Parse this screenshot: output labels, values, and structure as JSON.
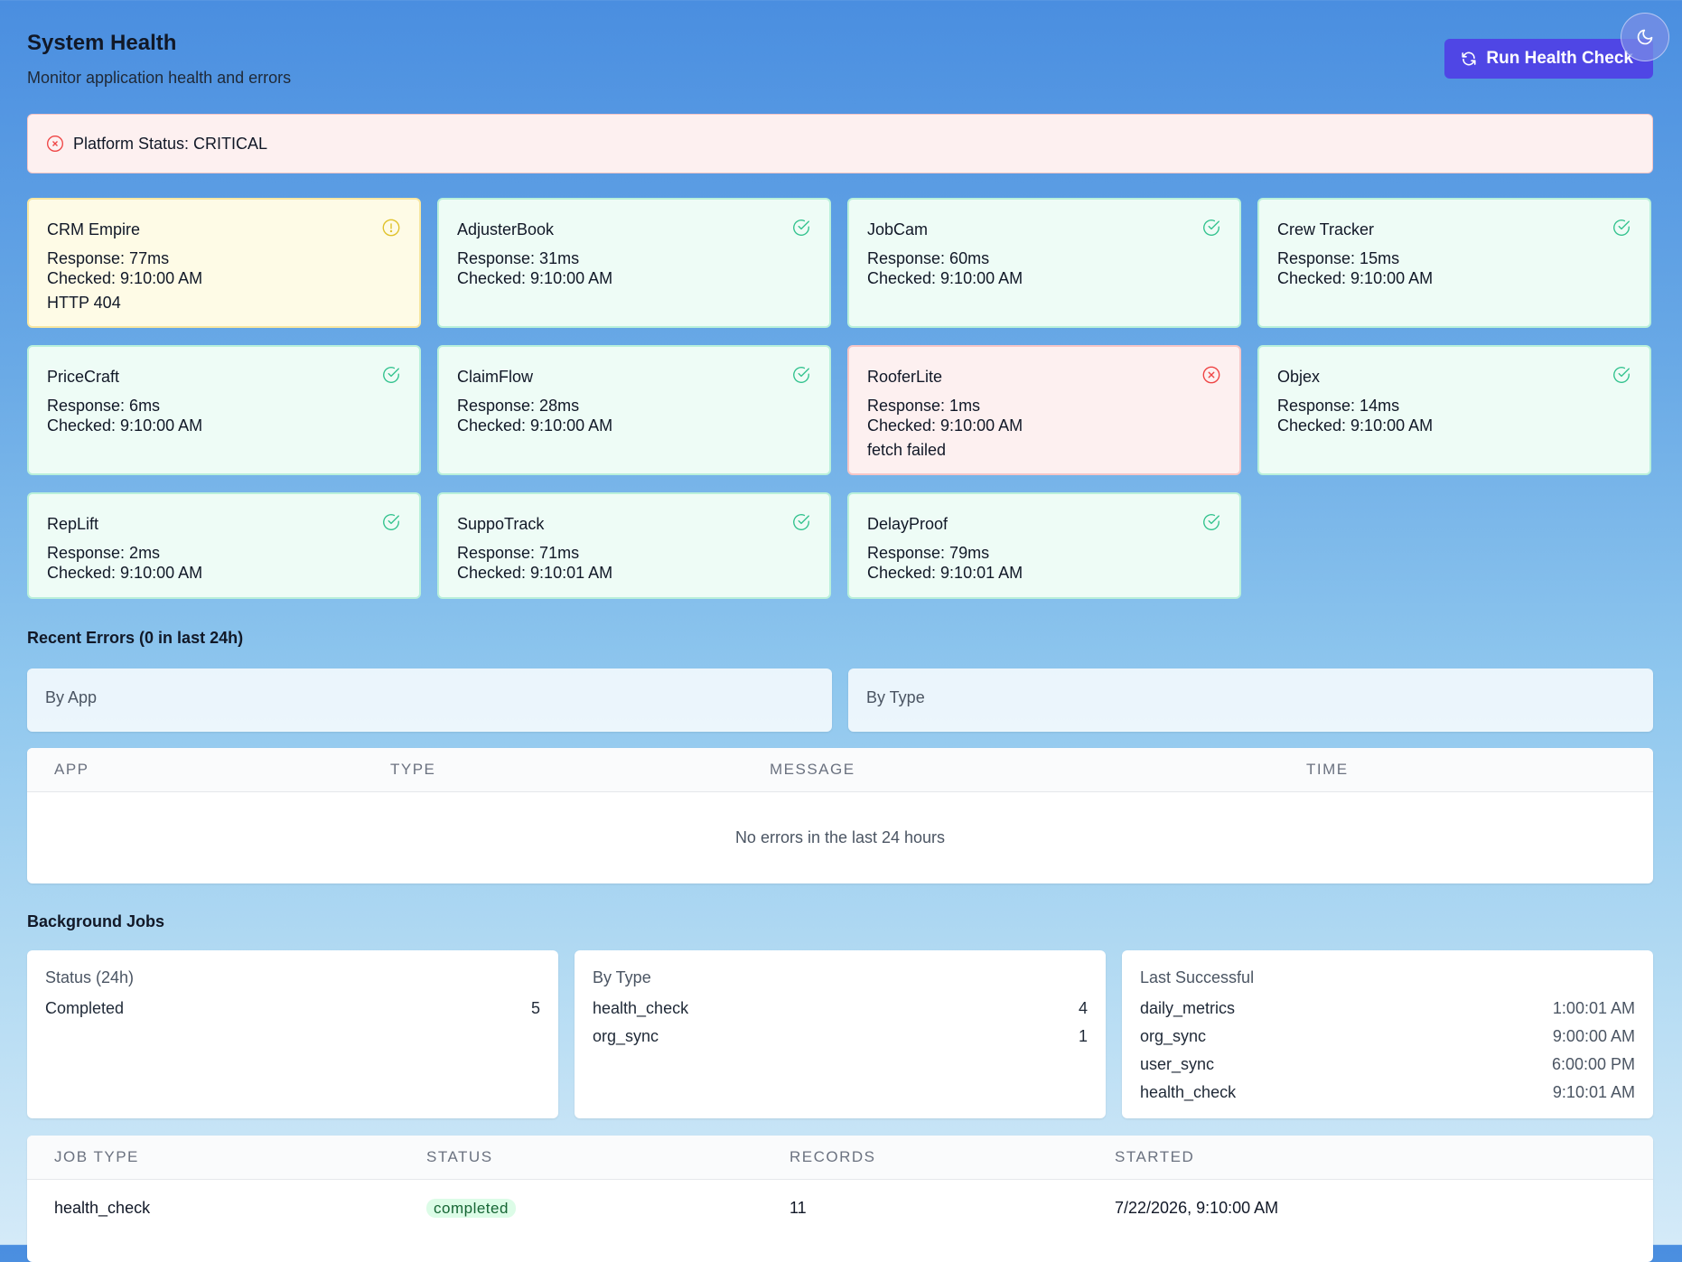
{
  "header": {
    "title": "System Health",
    "subtitle": "Monitor application health and errors",
    "run_button": "Run Health Check"
  },
  "platform": {
    "label": "Platform Status: CRITICAL"
  },
  "apps": [
    {
      "name": "CRM Empire",
      "response": "Response: 77ms",
      "checked": "Checked: 9:10:00 AM",
      "error": "HTTP 404",
      "status": "degraded"
    },
    {
      "name": "AdjusterBook",
      "response": "Response: 31ms",
      "checked": "Checked: 9:10:00 AM",
      "error": "",
      "status": "healthy"
    },
    {
      "name": "JobCam",
      "response": "Response: 60ms",
      "checked": "Checked: 9:10:00 AM",
      "error": "",
      "status": "healthy"
    },
    {
      "name": "Crew Tracker",
      "response": "Response: 15ms",
      "checked": "Checked: 9:10:00 AM",
      "error": "",
      "status": "healthy"
    },
    {
      "name": "PriceCraft",
      "response": "Response: 6ms",
      "checked": "Checked: 9:10:00 AM",
      "error": "",
      "status": "healthy"
    },
    {
      "name": "ClaimFlow",
      "response": "Response: 28ms",
      "checked": "Checked: 9:10:00 AM",
      "error": "",
      "status": "healthy"
    },
    {
      "name": "RooferLite",
      "response": "Response: 1ms",
      "checked": "Checked: 9:10:00 AM",
      "error": "fetch failed",
      "status": "down"
    },
    {
      "name": "Objex",
      "response": "Response: 14ms",
      "checked": "Checked: 9:10:00 AM",
      "error": "",
      "status": "healthy"
    },
    {
      "name": "RepLift",
      "response": "Response: 2ms",
      "checked": "Checked: 9:10:00 AM",
      "error": "",
      "status": "healthy"
    },
    {
      "name": "SuppoTrack",
      "response": "Response: 71ms",
      "checked": "Checked: 9:10:01 AM",
      "error": "",
      "status": "healthy"
    },
    {
      "name": "DelayProof",
      "response": "Response: 79ms",
      "checked": "Checked: 9:10:01 AM",
      "error": "",
      "status": "healthy"
    }
  ],
  "errors": {
    "title": "Recent Errors (0 in last 24h)",
    "by_app": "By App",
    "by_type": "By Type",
    "columns": [
      "APP",
      "TYPE",
      "MESSAGE",
      "TIME"
    ],
    "empty": "No errors in the last 24 hours"
  },
  "jobs": {
    "title": "Background Jobs",
    "status_panel": {
      "title": "Status (24h)",
      "rows": [
        {
          "k": "Completed",
          "v": "5"
        }
      ]
    },
    "type_panel": {
      "title": "By Type",
      "rows": [
        {
          "k": "health_check",
          "v": "4"
        },
        {
          "k": "org_sync",
          "v": "1"
        }
      ]
    },
    "last_panel": {
      "title": "Last Successful",
      "rows": [
        {
          "k": "daily_metrics",
          "v": "1:00:01 AM"
        },
        {
          "k": "org_sync",
          "v": "9:00:00 AM"
        },
        {
          "k": "user_sync",
          "v": "6:00:00 PM"
        },
        {
          "k": "health_check",
          "v": "9:10:01 AM"
        }
      ]
    },
    "columns": [
      "JOB TYPE",
      "STATUS",
      "RECORDS",
      "STARTED"
    ],
    "rows": [
      {
        "job_type": "health_check",
        "status": "completed",
        "records": "11",
        "started": "7/22/2026, 9:10:00 AM"
      }
    ]
  },
  "colors": {
    "accent": "#4f46e5",
    "healthy": "#22c55e",
    "degraded": "#eab308",
    "down": "#ef4444"
  },
  "icons": {
    "run_button": "refresh-icon",
    "theme_toggle": "moon-icon",
    "healthy": "check-circle-icon",
    "degraded": "alert-circle-icon",
    "down": "x-circle-icon"
  }
}
